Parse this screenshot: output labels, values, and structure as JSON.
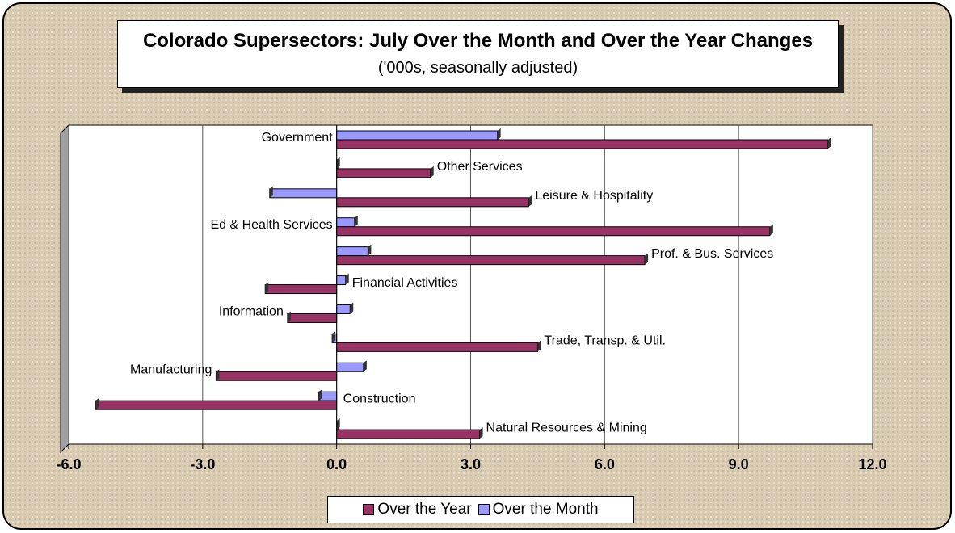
{
  "chart_data": {
    "type": "hbar",
    "title": "Colorado Supersectors: July Over the Month and Over the Year Changes",
    "subtitle": "('000s, seasonally adjusted)",
    "categories": [
      "Government",
      "Other Services",
      "Leisure & Hospitality",
      "Ed & Health Services",
      "Prof. & Bus. Services",
      "Financial Activities",
      "Information",
      "Trade, Transp. & Util.",
      "Manufacturing",
      "Construction",
      "Natural Resources & Mining"
    ],
    "series": [
      {
        "name": "Over the Year",
        "color": "#993366",
        "values": [
          11.0,
          2.1,
          4.3,
          9.7,
          6.9,
          -1.6,
          -1.1,
          4.5,
          -2.7,
          -5.4,
          3.2
        ]
      },
      {
        "name": "Over the Month",
        "color": "#9999ff",
        "values": [
          3.6,
          0.0,
          -1.5,
          0.4,
          0.7,
          0.2,
          0.3,
          -0.1,
          0.6,
          -0.4,
          0.0
        ]
      }
    ],
    "xlim": [
      -6,
      12
    ],
    "xticks": [
      {
        "value": -6,
        "label": "-6.0"
      },
      {
        "value": -3,
        "label": "-3.0"
      },
      {
        "value": 0,
        "label": "0.0"
      },
      {
        "value": 3,
        "label": "3.0"
      },
      {
        "value": 6,
        "label": "6.0"
      },
      {
        "value": 9,
        "label": "9.0"
      },
      {
        "value": 12,
        "label": "12.0"
      }
    ],
    "grid": true,
    "legend": "bottom"
  }
}
